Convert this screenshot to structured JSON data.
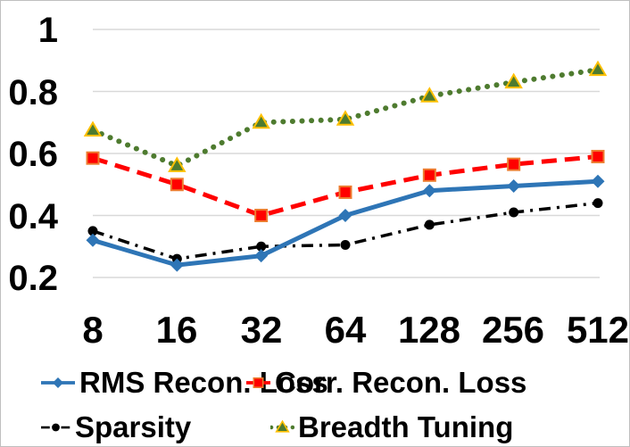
{
  "chart_data": {
    "type": "line",
    "title": "",
    "categories": [
      "8",
      "16",
      "32",
      "64",
      "128",
      "256",
      "512"
    ],
    "y_ticks": [
      "1",
      "0.8",
      "0.6",
      "0.4",
      "0.2"
    ],
    "y_tick_values": [
      1,
      0.8,
      0.6,
      0.4,
      0.2
    ],
    "ylim": [
      0.2,
      1.0
    ],
    "grid": true,
    "legend_position": "bottom",
    "colors": {
      "background": "#FFFFFF",
      "grid": "#D9D9D9",
      "border": "#BFBFBF",
      "text": "#000000"
    },
    "series": [
      {
        "name": "RMS Recon. Loss",
        "color": "#2E75B6",
        "line_style": "solid",
        "marker": "diamond",
        "marker_fill": "#2E75B6",
        "marker_outline": null,
        "values": [
          0.32,
          0.24,
          0.27,
          0.4,
          0.48,
          0.495,
          0.51
        ]
      },
      {
        "name": "Corr. Recon. Loss",
        "color": "#FF0000",
        "line_style": "dashed",
        "marker": "square",
        "marker_fill": "#FF0000",
        "marker_outline": "#ED7D31",
        "values": [
          0.585,
          0.5,
          0.4,
          0.475,
          0.53,
          0.565,
          0.59
        ]
      },
      {
        "name": "Sparsity",
        "color": "#000000",
        "line_style": "dash-dot",
        "marker": "circle",
        "marker_fill": "#000000",
        "marker_outline": null,
        "values": [
          0.35,
          0.26,
          0.3,
          0.305,
          0.37,
          0.41,
          0.44
        ]
      },
      {
        "name": "Breadth Tuning",
        "color": "#4E7B2F",
        "line_style": "dotted",
        "marker": "triangle",
        "marker_fill": "#4E7B2F",
        "marker_outline": "#FFC000",
        "values": [
          0.675,
          0.56,
          0.7,
          0.71,
          0.785,
          0.83,
          0.87
        ]
      }
    ]
  }
}
